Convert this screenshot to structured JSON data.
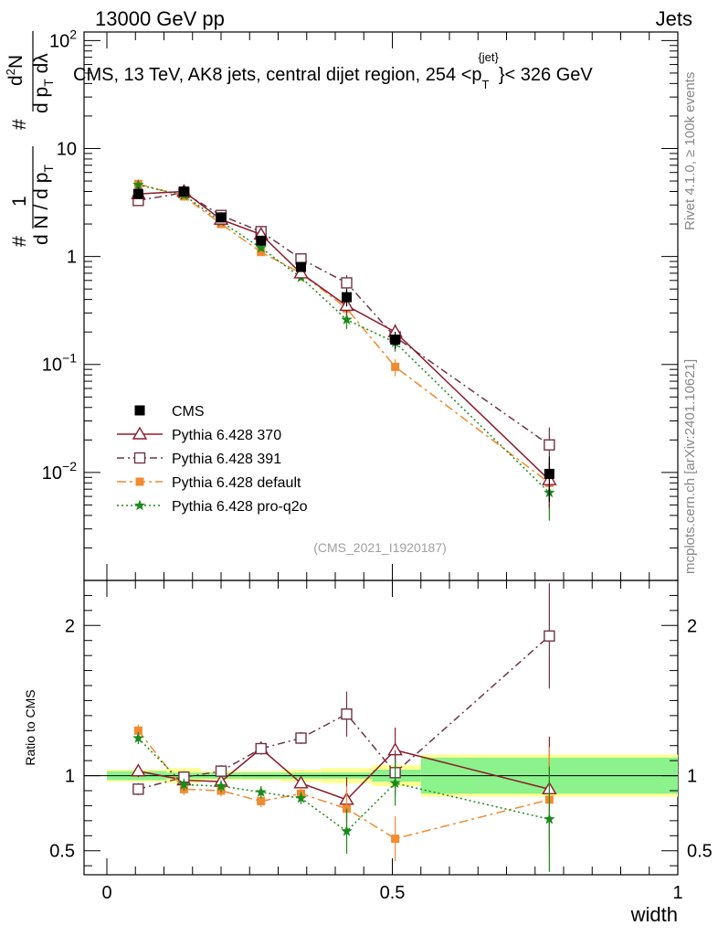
{
  "header": {
    "left": "13000 GeV pp",
    "right": "Jets"
  },
  "side_labels": {
    "rivet": "Rivet 4.1.0, ≥ 100k events",
    "mcplots": "mcplots.cern.ch [arXiv:2401.10621]"
  },
  "colors": {
    "data": "#000000",
    "p370": "#8b1a2b",
    "p391": "#6e3347",
    "default": "#f28a30",
    "proq2o": "#1a8a1a",
    "band_inner": "#8cf28c",
    "band_outer": "#ffff90"
  },
  "chart_data": {
    "type": "line",
    "title": "CMS, 13 TeV, AK8 jets, central dijet region, 254 <p_T^{jet}< 326 GeV",
    "title_parts": {
      "prefix": "CMS, 13 TeV, AK8 jets, central dijet region, 254 <p",
      "sub": "T",
      "sup": "{jet}",
      "suffix": "}< 326 GeV"
    },
    "analysis_label": "(CMS_2021_I1920187)",
    "xlabel": "width",
    "ylabel": "1/(dN/dp_T) d²N/(dp_T dλ)",
    "ylabel_parts": {
      "hash1": "#",
      "one": "1",
      "hash2": "#",
      "denom": "d N / d p",
      "denom_sub": "T",
      "num": "d",
      "num_sup": "2",
      "num_tail": "N",
      "den2": "d p",
      "den2_sub": "T",
      "den2_tail": " dλ"
    },
    "ratio_ylabel": "Ratio to CMS",
    "xlim": [
      -0.04,
      1.0
    ],
    "ylim": [
      0.001,
      120
    ],
    "yscale": "log",
    "ratio_ylim": [
      0.34,
      2.3
    ],
    "x_ticks": [
      "0",
      "0.5",
      "1"
    ],
    "y_ticks": [
      {
        "value": 0.01,
        "base": "10",
        "exp": "−2"
      },
      {
        "value": 0.1,
        "base": "10",
        "exp": "−1"
      },
      {
        "value": 1,
        "base": "1",
        "exp": ""
      },
      {
        "value": 10,
        "base": "10",
        "exp": ""
      },
      {
        "value": 100,
        "base": "10",
        "exp": "2"
      }
    ],
    "ratio_ticks": [
      "0.5",
      "1",
      "2"
    ],
    "x": [
      0.055,
      0.135,
      0.2,
      0.27,
      0.34,
      0.42,
      0.505,
      0.775
    ],
    "series": [
      {
        "name": "CMS",
        "style": "data",
        "values": [
          3.8,
          4.0,
          2.3,
          1.4,
          0.8,
          0.42,
          0.17,
          0.0097
        ]
      },
      {
        "name": "Pythia 6.428 370",
        "style": "p370",
        "values": [
          3.8,
          4.0,
          2.2,
          1.6,
          0.7,
          0.35,
          0.2,
          0.0085
        ]
      },
      {
        "name": "Pythia 6.428 391",
        "style": "p391",
        "values": [
          3.3,
          3.9,
          2.4,
          1.7,
          0.95,
          0.57,
          0.18,
          0.018
        ]
      },
      {
        "name": "Pythia 6.428 default",
        "style": "default",
        "values": [
          4.7,
          3.6,
          2.0,
          1.1,
          0.7,
          0.33,
          0.095,
          0.008
        ]
      },
      {
        "name": "Pythia 6.428 pro-q2o",
        "style": "proq2o",
        "values": [
          4.6,
          3.7,
          2.1,
          1.2,
          0.64,
          0.26,
          0.16,
          0.0065
        ]
      }
    ],
    "ratio_series": [
      {
        "name": "Pythia 6.428 370",
        "values": [
          1.03,
          0.97,
          0.96,
          1.18,
          0.95,
          0.84,
          1.17,
          0.91
        ]
      },
      {
        "name": "Pythia 6.428 391",
        "values": [
          0.91,
          0.99,
          1.03,
          1.18,
          1.25,
          1.41,
          1.02,
          1.93
        ]
      },
      {
        "name": "Pythia 6.428 default",
        "values": [
          1.3,
          0.91,
          0.9,
          0.83,
          0.88,
          0.78,
          0.58,
          0.84
        ]
      },
      {
        "name": "Pythia 6.428 pro-q2o",
        "values": [
          1.25,
          0.94,
          0.93,
          0.89,
          0.85,
          0.63,
          0.95,
          0.71
        ]
      }
    ],
    "uncertainty_bands": {
      "bin_edges": [
        0.0,
        0.105,
        0.165,
        0.235,
        0.305,
        0.375,
        0.465,
        0.55,
        1.0
      ],
      "inner": [
        0.03,
        0.02,
        0.02,
        0.02,
        0.02,
        0.02,
        0.04,
        0.12
      ],
      "outer": [
        0.04,
        0.05,
        0.03,
        0.03,
        0.04,
        0.05,
        0.07,
        0.14
      ]
    }
  }
}
